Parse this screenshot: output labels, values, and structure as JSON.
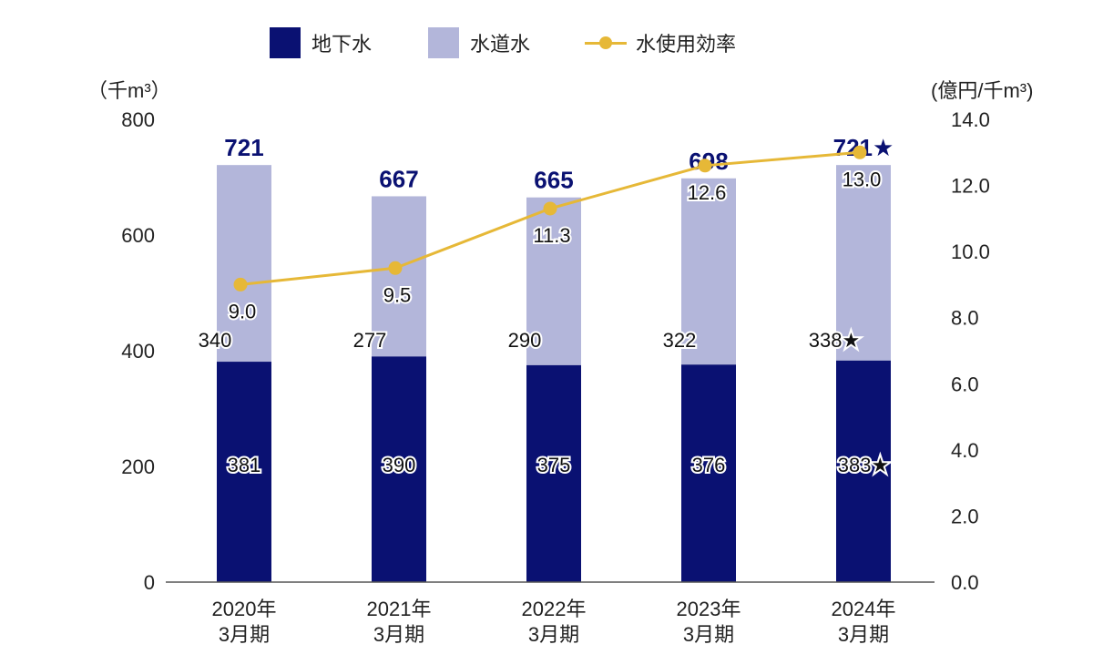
{
  "legend": {
    "groundwater": "地下水",
    "tapwater": "水道水",
    "efficiency": "水使用効率"
  },
  "units": {
    "left": "（千m³）",
    "right": "(億円/千m³)"
  },
  "colors": {
    "groundwater": "#0a1172",
    "tapwater": "#b3b6da",
    "efficiency": "#e6b837",
    "total_label": "#0a1172"
  },
  "chart_data": {
    "type": "bar",
    "stacked": true,
    "categories": [
      "2020年\n3月期",
      "2021年\n3月期",
      "2022年\n3月期",
      "2023年\n3月期",
      "2024年\n3月期"
    ],
    "series": [
      {
        "name": "地下水",
        "values": [
          381,
          390,
          375,
          376,
          383
        ],
        "labels": [
          "381",
          "390",
          "375",
          "376",
          "383★"
        ]
      },
      {
        "name": "水道水",
        "values": [
          340,
          277,
          290,
          322,
          338
        ],
        "labels": [
          "340",
          "277",
          "290",
          "322",
          "338★"
        ]
      }
    ],
    "totals": [
      721,
      667,
      665,
      698,
      721
    ],
    "total_labels": [
      "721",
      "667",
      "665",
      "698",
      "721★"
    ],
    "line_series": {
      "name": "水使用効率",
      "values": [
        9.0,
        9.5,
        11.3,
        12.6,
        13.0
      ],
      "labels": [
        "9.0",
        "9.5",
        "11.3",
        "12.6",
        "13.0"
      ]
    },
    "ylim": [
      0,
      800
    ],
    "yticks": [
      "0",
      "200",
      "400",
      "600",
      "800"
    ],
    "y2lim": [
      0,
      14
    ],
    "y2ticks": [
      "0.0",
      "2.0",
      "4.0",
      "6.0",
      "8.0",
      "10.0",
      "12.0",
      "14.0"
    ]
  }
}
